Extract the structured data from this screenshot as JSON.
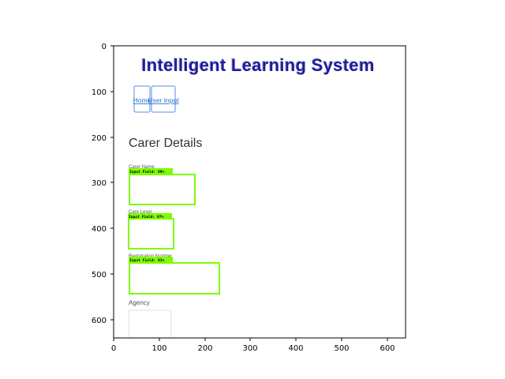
{
  "app": {
    "title": "Intelligent Learning System",
    "nav": [
      {
        "label": "Home"
      },
      {
        "label": "User Input"
      }
    ],
    "section_title": "Carer Details",
    "fields": [
      {
        "label": "Carer Name",
        "detection": "Input Field: 99%"
      },
      {
        "label": "Care Level",
        "detection": "Input Field: 97%"
      },
      {
        "label": "Registration Number",
        "detection": "Input Field: 91%"
      },
      {
        "label": "Agency",
        "detection": ""
      }
    ]
  },
  "plot": {
    "x_ticks": [
      "0",
      "100",
      "200",
      "300",
      "400",
      "500",
      "600"
    ],
    "y_ticks": [
      "0",
      "100",
      "200",
      "300",
      "400",
      "500",
      "600"
    ],
    "detection_color": "#7cfc00"
  }
}
